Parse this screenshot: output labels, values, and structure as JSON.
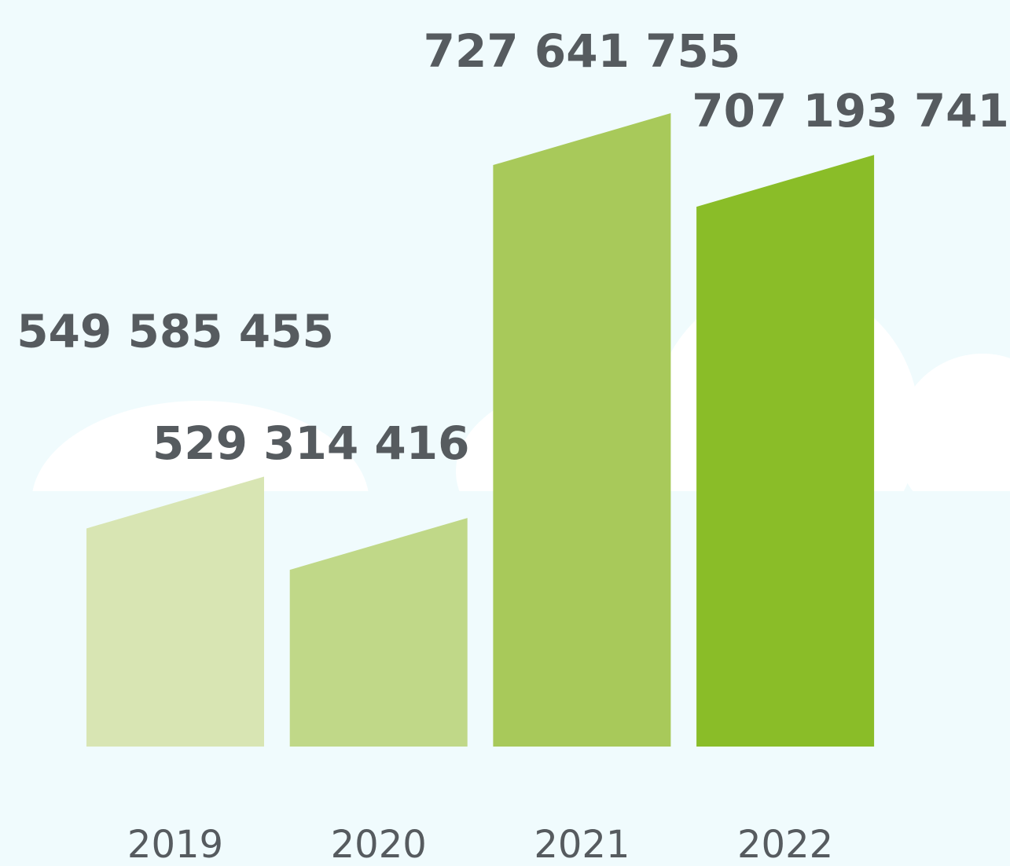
{
  "chart_data": {
    "type": "bar",
    "categories": [
      "2019",
      "2020",
      "2021",
      "2022"
    ],
    "values": [
      549585455,
      529314416,
      727641755,
      707193741
    ],
    "value_labels": [
      "549 585 455",
      "529 314 416",
      "727 641 755",
      "707 193 741"
    ],
    "colors": [
      "#d8e5b3",
      "#c0d888",
      "#a8c95a",
      "#8abd28"
    ],
    "ylim": [
      430000000,
      760000000
    ]
  }
}
